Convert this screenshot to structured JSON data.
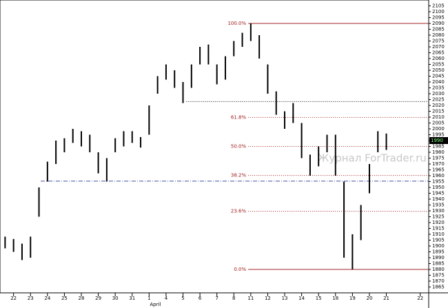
{
  "chart_data": {
    "type": "hilo",
    "color": "#000000",
    "x": [
      -0.5,
      0,
      0.5,
      1,
      1.5,
      2,
      2.5,
      3,
      3.5,
      4,
      4.5,
      5,
      5.5,
      6,
      6.5,
      7,
      7.5,
      8,
      8.5,
      9,
      9.5,
      10,
      10.5,
      11,
      11.5,
      12,
      12.5,
      13,
      13.5,
      14,
      14.5,
      15,
      15.5,
      16,
      16.5,
      17,
      17.5,
      18,
      18.5,
      19,
      19.5,
      20,
      20.5,
      21,
      21.5,
      22
    ],
    "high": [
      1908,
      1906,
      1902,
      1908,
      1950,
      1972,
      1990,
      1992,
      2000,
      1998,
      1995,
      1980,
      1975,
      1992,
      1998,
      1998,
      1993,
      2020,
      2045,
      2055,
      2050,
      2040,
      2055,
      2070,
      2072,
      2055,
      2062,
      2075,
      2082,
      2090,
      2080,
      2055,
      2032,
      2015,
      2022,
      2005,
      1978,
      1985,
      1995,
      1995,
      1955,
      1910,
      1935,
      1970,
      1998,
      1996
    ],
    "low": [
      1898,
      1895,
      1888,
      1890,
      1925,
      1955,
      1970,
      1980,
      1988,
      1985,
      1980,
      1962,
      1955,
      1980,
      1985,
      1988,
      1984,
      1995,
      2030,
      2042,
      2035,
      2022,
      2035,
      2055,
      2055,
      2038,
      2042,
      2062,
      2070,
      2075,
      2060,
      2030,
      2012,
      2000,
      2005,
      1975,
      1960,
      1968,
      1980,
      1960,
      1890,
      1880,
      1905,
      1945,
      1980,
      1982
    ],
    "xlim": [
      -0.8,
      24.5
    ],
    "xticks": [
      {
        "value": 0,
        "label": "22"
      },
      {
        "value": 1,
        "label": "23"
      },
      {
        "value": 2,
        "label": "24"
      },
      {
        "value": 3,
        "label": "25"
      },
      {
        "value": 4,
        "label": "28"
      },
      {
        "value": 5,
        "label": "29"
      },
      {
        "value": 6,
        "label": "30"
      },
      {
        "value": 7,
        "label": "31"
      },
      {
        "value": 8,
        "label": "1"
      },
      {
        "value": 9,
        "label": "4"
      },
      {
        "value": 10,
        "label": "5"
      },
      {
        "value": 11,
        "label": "6"
      },
      {
        "value": 12,
        "label": "7"
      },
      {
        "value": 13,
        "label": "8"
      },
      {
        "value": 14,
        "label": "11"
      },
      {
        "value": 15,
        "label": "12"
      },
      {
        "value": 16,
        "label": "13"
      },
      {
        "value": 17,
        "label": "14"
      },
      {
        "value": 18,
        "label": "15"
      },
      {
        "value": 19,
        "label": "18"
      },
      {
        "value": 20,
        "label": "19"
      },
      {
        "value": 21,
        "label": "20"
      },
      {
        "value": 22,
        "label": "21"
      },
      {
        "value": 24,
        "label": "22"
      }
    ],
    "month_label": {
      "value": 8,
      "label": "April"
    },
    "ylim": [
      1860,
      2110
    ],
    "yticks": [
      1865,
      1870,
      1875,
      1880,
      1885,
      1890,
      1895,
      1900,
      1905,
      1910,
      1915,
      1920,
      1925,
      1930,
      1935,
      1940,
      1945,
      1950,
      1955,
      1960,
      1965,
      1970,
      1975,
      1980,
      1985,
      1990,
      1995,
      2000,
      2005,
      2010,
      2015,
      2020,
      2025,
      2030,
      2035,
      2040,
      2045,
      2050,
      2055,
      2060,
      2065,
      2070,
      2075,
      2080,
      2085,
      2090,
      2095,
      2100,
      2105
    ],
    "fib_levels": [
      {
        "label": "100.0%",
        "value": 2090,
        "x_start": 13.85,
        "style": "solid"
      },
      {
        "label": "61.8%",
        "value": 2009.8,
        "x_start": 13.85,
        "style": "dotted"
      },
      {
        "label": "50.0%",
        "value": 1985,
        "x_start": 13.85,
        "style": "dotted"
      },
      {
        "label": "38.2%",
        "value": 1960.2,
        "x_start": 13.85,
        "style": "dotted"
      },
      {
        "label": "23.6%",
        "value": 1929.6,
        "x_start": 13.85,
        "style": "dotted"
      },
      {
        "label": "0.0%",
        "value": 1880,
        "x_start": 13.85,
        "style": "solid"
      }
    ],
    "fib_color": "#a02020",
    "reference_lines": [
      {
        "value": 2023.3,
        "x_start": 10.2,
        "color": "#000000",
        "style": "dotted"
      },
      {
        "value": 1955.4,
        "x_start": 1.6,
        "color": "#4050a0",
        "style": "dashdot"
      }
    ],
    "last_price": 1990,
    "watermark": "Журнал ForTrader.ru"
  }
}
